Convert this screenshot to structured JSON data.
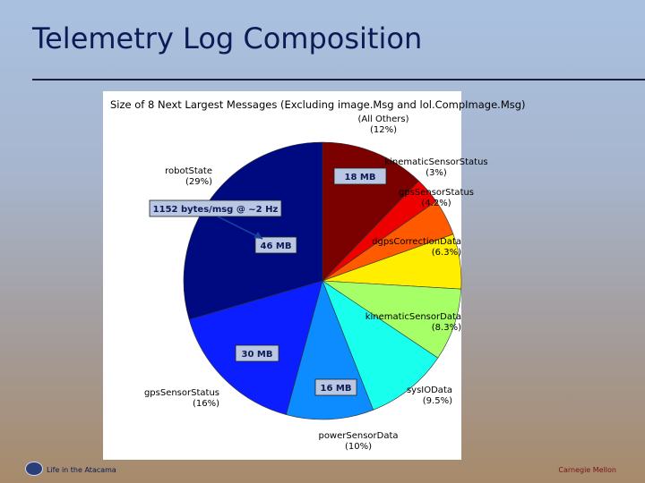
{
  "slide": {
    "title": "Telemetry Log Composition",
    "footer_left": "Life in the Atacama",
    "footer_right": "Carnegie Mellon"
  },
  "chart_data": {
    "type": "pie",
    "title": "Size of 8 Next Largest Messages (Excluding image.Msg and lol.CompImage.Msg)",
    "slices": [
      {
        "label": "(All Others)",
        "percent": "(12%)",
        "value": 12,
        "color": "#7b0000"
      },
      {
        "label": "kinematicSensorStatus",
        "percent": "(3%)",
        "value": 3,
        "color": "#ee0000"
      },
      {
        "label": "gpsSensorStatus",
        "percent": "(4.2%)",
        "value": 4.2,
        "color": "#ff5a00"
      },
      {
        "label": "dgpsCorrectionData",
        "percent": "(6.3%)",
        "value": 6.3,
        "color": "#ffee00"
      },
      {
        "label": "kinematicSensorData",
        "percent": "(8.3%)",
        "value": 8.3,
        "color": "#a6ff66"
      },
      {
        "label": "sysIOData",
        "percent": "(9.5%)",
        "value": 9.5,
        "color": "#19ffee"
      },
      {
        "label": "powerSensorData",
        "percent": "(10%)",
        "value": 10,
        "color": "#0d8cff"
      },
      {
        "label": "gpsSensorStatus",
        "percent": "(16%)",
        "value": 16,
        "color": "#0a1eff"
      },
      {
        "label": "robotState",
        "percent": "(29%)",
        "value": 29,
        "color": "#000a80"
      }
    ],
    "annotations": [
      {
        "text": "18 MB"
      },
      {
        "text": "1152 bytes/msg @ ~2 Hz"
      },
      {
        "text": "46 MB"
      },
      {
        "text": "30 MB"
      },
      {
        "text": "16 MB"
      }
    ]
  }
}
